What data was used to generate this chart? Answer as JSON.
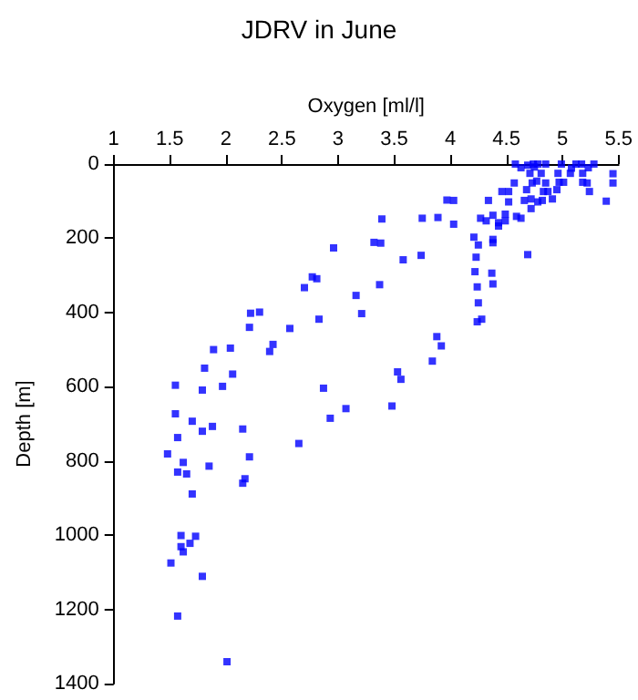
{
  "chart_data": {
    "type": "scatter",
    "title": "JDRV in June",
    "xlabel": "Oxygen [ml/l]",
    "ylabel": "Depth [m]",
    "xlim": [
      1,
      5.5
    ],
    "xticks": [
      1,
      1.5,
      2,
      2.5,
      3,
      3.5,
      4,
      4.5,
      5,
      5.5
    ],
    "ylim": [
      1400,
      0
    ],
    "yticks": [
      0,
      200,
      400,
      600,
      800,
      1000,
      1200,
      1400
    ],
    "grid": false,
    "marker": "square",
    "series": [
      {
        "color": "#0000ff",
        "x": [
          2.96,
          2.77,
          2.81,
          2.7,
          2.83,
          2.22,
          2.3,
          2.21,
          2.57,
          2.42,
          2.39,
          1.89,
          2.04,
          1.81,
          2.06,
          1.55,
          1.79,
          1.97,
          2.87,
          2.93,
          1.55,
          1.7,
          1.79,
          1.88,
          2.15,
          2.65,
          1.57,
          1.48,
          1.62,
          2.21,
          1.85,
          1.57,
          1.65,
          2.17,
          2.15,
          1.7,
          1.6,
          1.73,
          1.6,
          1.68,
          1.62,
          1.51,
          1.79,
          1.57,
          2.01,
          3.07,
          3.48,
          3.53,
          3.56,
          3.84,
          3.88,
          3.92,
          3.32,
          3.38,
          3.58,
          3.74,
          3.37,
          3.16,
          3.21,
          4.58,
          4.63,
          4.69,
          4.74,
          4.75,
          4.78,
          4.85,
          4.71,
          4.81,
          4.96,
          4.99,
          5.07,
          5.12,
          5.17,
          5.23,
          5.28,
          5.08,
          5.18,
          5.45,
          5.45,
          4.57,
          4.73,
          4.77,
          4.85,
          4.97,
          5.01,
          5.18,
          5.22,
          4.46,
          4.52,
          4.68,
          4.83,
          4.87,
          4.95,
          5.24,
          5.39,
          3.97,
          4.03,
          4.34,
          4.52,
          4.66,
          4.72,
          4.78,
          4.82,
          4.91,
          4.72,
          4.38,
          4.49,
          4.59,
          4.63,
          3.39,
          3.75,
          3.89,
          4.03,
          4.27,
          4.32,
          4.43,
          4.49,
          4.43,
          4.21,
          4.25,
          4.38,
          4.38,
          4.23,
          4.22,
          4.37,
          4.24,
          4.38,
          4.25,
          4.28,
          4.24,
          4.69
        ],
        "values": [
          226,
          304,
          309,
          333,
          418,
          402,
          399,
          440,
          443,
          486,
          505,
          500,
          496,
          550,
          566,
          596,
          609,
          599,
          604,
          685,
          673,
          693,
          720,
          707,
          714,
          753,
          737,
          781,
          804,
          789,
          814,
          830,
          835,
          848,
          860,
          889,
          1001,
          1003,
          1031,
          1022,
          1045,
          1075,
          1111,
          1218,
          1341,
          659,
          652,
          560,
          580,
          531,
          465,
          490,
          211,
          213,
          258,
          246,
          325,
          354,
          403,
          0,
          10,
          3,
          0,
          8,
          0,
          0,
          25,
          25,
          25,
          0,
          25,
          0,
          0,
          10,
          0,
          11,
          25,
          26,
          51,
          51,
          51,
          46,
          51,
          49,
          49,
          49,
          51,
          74,
          74,
          69,
          74,
          74,
          69,
          74,
          100,
          97,
          98,
          98,
          102,
          98,
          94,
          102,
          98,
          94,
          120,
          138,
          135,
          141,
          146,
          148,
          146,
          144,
          162,
          146,
          153,
          158,
          153,
          167,
          197,
          218,
          203,
          212,
          251,
          290,
          294,
          331,
          323,
          374,
          418,
          425,
          244
        ]
      }
    ]
  }
}
